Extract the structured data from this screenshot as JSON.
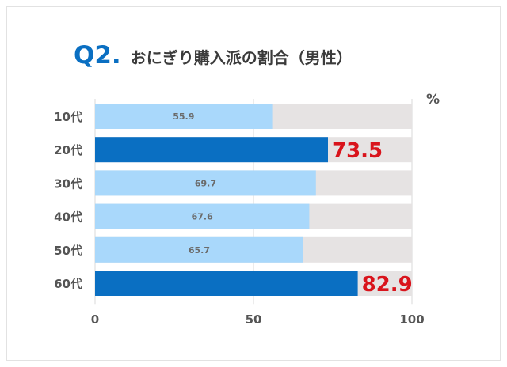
{
  "title": {
    "label": "Q2.",
    "text": "おにぎり購入派の割合（男性）"
  },
  "unit": "%",
  "colors": {
    "normal_bar": "#a9d8fb",
    "highlight_bar": "#0a6fc2",
    "track": "#e6e3e3",
    "normal_label": "#6b6b6b",
    "highlight_label": "#d9141c",
    "axis_text": "#555555",
    "grid": "#d8d8d8"
  },
  "chart_data": {
    "type": "bar",
    "orientation": "horizontal",
    "categories": [
      "10代",
      "20代",
      "30代",
      "40代",
      "50代",
      "60代"
    ],
    "values": [
      55.9,
      73.5,
      69.7,
      67.6,
      65.7,
      82.9
    ],
    "highlighted": [
      false,
      true,
      false,
      false,
      false,
      true
    ],
    "xlim": [
      0,
      100
    ],
    "xticks": [
      0,
      50,
      100
    ],
    "grid": true
  }
}
